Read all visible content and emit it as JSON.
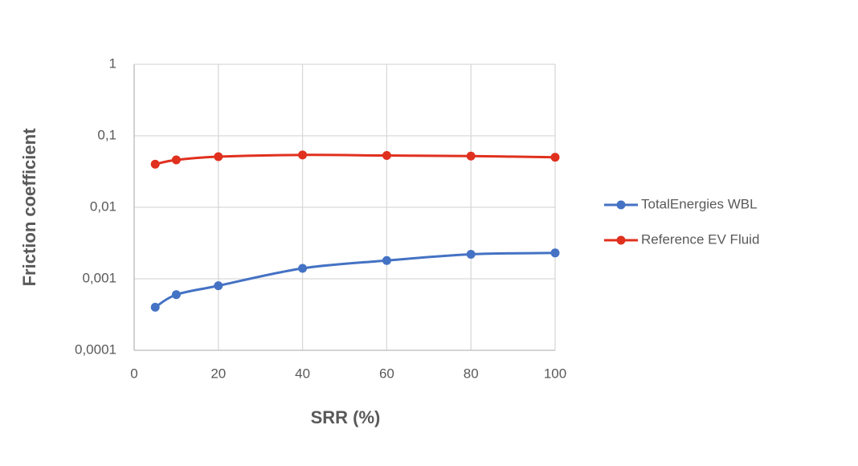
{
  "chart_data": {
    "type": "line",
    "x_label": "SRR (%)",
    "y_label": "Friction coefficient",
    "x": [
      5,
      10,
      20,
      40,
      60,
      80,
      100
    ],
    "series": [
      {
        "name": "TotalEnergies WBL",
        "color": "#4472c4",
        "values": [
          0.0004,
          0.0006,
          0.0008,
          0.0014,
          0.0018,
          0.0022,
          0.0023
        ]
      },
      {
        "name": "Reference EV Fluid",
        "color": "#e0301e",
        "values": [
          0.04,
          0.046,
          0.051,
          0.054,
          0.053,
          0.052,
          0.05
        ]
      }
    ],
    "xlim": [
      0,
      100
    ],
    "xticks": [
      0,
      20,
      40,
      60,
      80,
      100
    ],
    "ylim": [
      0.0001,
      1
    ],
    "yticks": [
      {
        "value": 0.0001,
        "label": "0,0001"
      },
      {
        "value": 0.001,
        "label": "0,001"
      },
      {
        "value": 0.01,
        "label": "0,01"
      },
      {
        "value": 0.1,
        "label": "0,1"
      },
      1
    ],
    "log_y": true,
    "grid": true,
    "legend": "right"
  }
}
